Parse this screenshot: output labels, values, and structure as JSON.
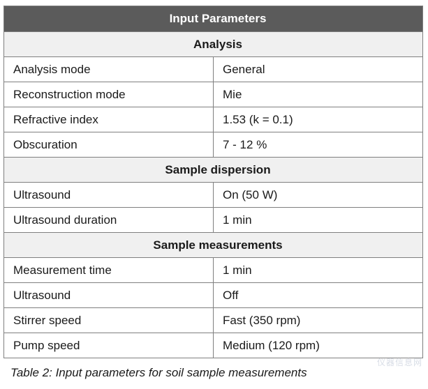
{
  "title": "Input Parameters",
  "sections": [
    {
      "heading": "Analysis",
      "rows": [
        {
          "label": "Analysis mode",
          "value": "General"
        },
        {
          "label": "Reconstruction mode",
          "value": "Mie"
        },
        {
          "label": "Refractive index",
          "value": "1.53 (k = 0.1)"
        },
        {
          "label": "Obscuration",
          "value": "7 - 12 %"
        }
      ]
    },
    {
      "heading": "Sample dispersion",
      "rows": [
        {
          "label": "Ultrasound",
          "value": "On (50 W)"
        },
        {
          "label": "Ultrasound duration",
          "value": "1 min"
        }
      ]
    },
    {
      "heading": "Sample measurements",
      "rows": [
        {
          "label": "Measurement time",
          "value": "1 min"
        },
        {
          "label": "Ultrasound",
          "value": "Off"
        },
        {
          "label": "Stirrer speed",
          "value": "Fast (350 rpm)"
        },
        {
          "label": "Pump speed",
          "value": "Medium (120 rpm)"
        }
      ]
    }
  ],
  "caption": "Table 2: Input parameters for soil sample measurements",
  "watermark": "仪器信息网",
  "colors": {
    "header_bg": "#5b5b5b",
    "section_bg": "#f0f0f0",
    "border": "#7f7f7f"
  }
}
